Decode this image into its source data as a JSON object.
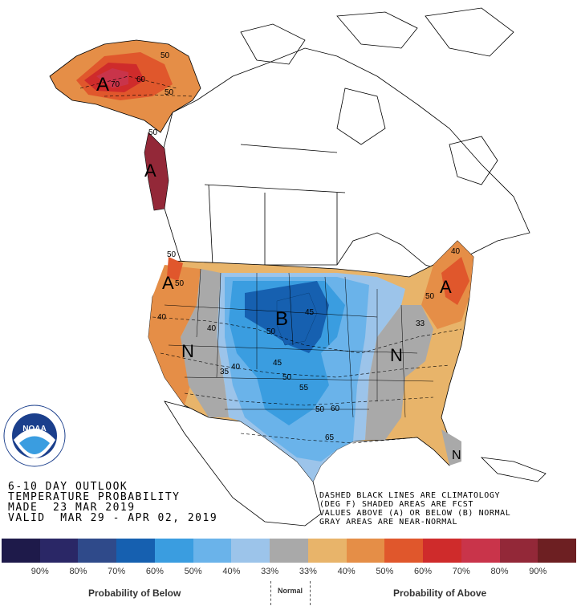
{
  "title_block": {
    "line1": "6-10 DAY OUTLOOK",
    "line2": "TEMPERATURE PROBABILITY",
    "line3": "MADE  23 MAR 2019",
    "line4": "VALID  MAR 29 - APR 02, 2019"
  },
  "notes": {
    "line1": "DASHED BLACK LINES ARE CLIMATOLOGY",
    "line2": "(DEG F) SHADED AREAS ARE FCST",
    "line3": "VALUES ABOVE (A) OR BELOW (B) NORMAL",
    "line4": "GRAY AREAS ARE NEAR-NORMAL"
  },
  "logo": {
    "text": "NOAA",
    "ring_text": "NATIONAL OCEANIC AND ATMOSPHERIC ADMINISTRATION",
    "ring_text_bottom": "U.S. DEPARTMENT OF COMMERCE"
  },
  "map_labels": {
    "alaska_a": "A",
    "panhandle_a": "A",
    "west_a": "A",
    "east_a": "A",
    "central_b": "B",
    "west_n": "N",
    "east_n": "N",
    "florida_n": "N"
  },
  "contour_labels": [
    "70",
    "50",
    "50",
    "60",
    "50",
    "50",
    "50",
    "40",
    "50",
    "35",
    "40",
    "45",
    "50",
    "50",
    "55",
    "60",
    "65",
    "45",
    "40",
    "50",
    "33",
    "40"
  ],
  "legend": {
    "colors": [
      "#1e1a4a",
      "#2a2766",
      "#2f4a8a",
      "#1660b0",
      "#3a9de0",
      "#6ab3ea",
      "#9cc4ea",
      "#a9a9a9",
      "#e8b46a",
      "#e58e47",
      "#e0572c",
      "#cf2b2b",
      "#c9344a",
      "#932838",
      "#6d1f22"
    ],
    "labels": [
      "90%",
      "80%",
      "70%",
      "60%",
      "50%",
      "40%",
      "33%",
      "33%",
      "40%",
      "50%",
      "60%",
      "70%",
      "80%",
      "90%"
    ],
    "below_label": "Probability of Below",
    "normal_label": "Normal",
    "above_label": "Probability of Above"
  }
}
